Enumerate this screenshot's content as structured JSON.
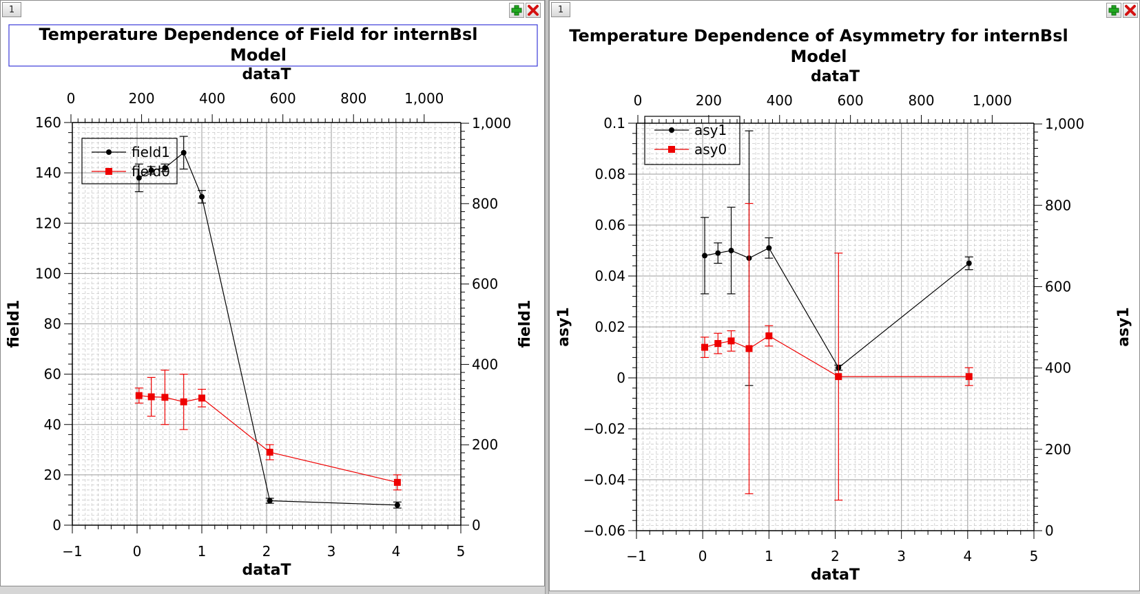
{
  "panels": [
    {
      "tab_label": "1"
    },
    {
      "tab_label": "1"
    }
  ],
  "chart_data": [
    {
      "type": "scatter",
      "title_lines": [
        "Temperature Dependence of Field for internBsl",
        "Model"
      ],
      "xlabel": "dataT",
      "ylabel": "field1",
      "x2label": "dataT",
      "y2label": "field1",
      "xlim": [
        -1,
        5
      ],
      "ylim": [
        0,
        160
      ],
      "x2lim": [
        0,
        1000
      ],
      "y2lim": [
        0,
        1000
      ],
      "xticks": [
        "−1",
        "0",
        "1",
        "2",
        "3",
        "4",
        "5"
      ],
      "yticks": [
        "0",
        "20",
        "40",
        "60",
        "80",
        "100",
        "120",
        "140",
        "160"
      ],
      "x2ticks": [
        "0",
        "200",
        "400",
        "600",
        "800",
        "1,000"
      ],
      "y2ticks": [
        "0",
        "200",
        "400",
        "600",
        "800",
        "1,000"
      ],
      "grid": true,
      "legend": "top-left",
      "series": [
        {
          "name": "field1",
          "color": "#000000",
          "marker": "circle",
          "x": [
            0.03,
            0.22,
            0.43,
            0.72,
            1.0,
            2.05,
            4.02
          ],
          "y": [
            138,
            141,
            142,
            148,
            130.5,
            9.7,
            8.0
          ],
          "err": [
            5.5,
            1.5,
            1.5,
            6.5,
            2.5,
            1.0,
            1.2
          ]
        },
        {
          "name": "field0",
          "color": "#ee0000",
          "marker": "square",
          "x": [
            0.03,
            0.22,
            0.43,
            0.72,
            1.0,
            2.05,
            4.02
          ],
          "y": [
            51.5,
            51.0,
            50.8,
            49.0,
            50.5,
            29.0,
            17.0
          ],
          "err": [
            3.0,
            7.7,
            10.8,
            11.0,
            3.5,
            3.0,
            3.0
          ]
        }
      ]
    },
    {
      "type": "scatter",
      "title_lines": [
        "Temperature Dependence of Asymmetry for internBsl",
        "Model"
      ],
      "xlabel": "dataT",
      "ylabel": "asy1",
      "x2label": "dataT",
      "y2label": "asy1",
      "xlim": [
        -1,
        5
      ],
      "ylim": [
        -0.06,
        0.1
      ],
      "x2lim": [
        0,
        1000
      ],
      "y2lim": [
        0,
        1000
      ],
      "xticks": [
        "−1",
        "0",
        "1",
        "2",
        "3",
        "4",
        "5"
      ],
      "yticks": [
        "−0.06",
        "−0.04",
        "−0.02",
        "0",
        "0.02",
        "0.04",
        "0.06",
        "0.08",
        "0.1"
      ],
      "x2ticks": [
        "0",
        "200",
        "400",
        "600",
        "800",
        "1,000"
      ],
      "y2ticks": [
        "0",
        "200",
        "400",
        "600",
        "800",
        "1,000"
      ],
      "grid": true,
      "legend": "top-left",
      "series": [
        {
          "name": "asy1",
          "color": "#000000",
          "marker": "circle",
          "x": [
            0.03,
            0.23,
            0.43,
            0.7,
            1.0,
            2.05,
            4.02
          ],
          "y": [
            0.048,
            0.049,
            0.05,
            0.047,
            0.051,
            0.004,
            0.045
          ],
          "err": [
            0.015,
            0.004,
            0.017,
            0.05,
            0.004,
            0.001,
            0.0025
          ]
        },
        {
          "name": "asy0",
          "color": "#ee0000",
          "marker": "square",
          "x": [
            0.03,
            0.23,
            0.43,
            0.7,
            1.0,
            2.05,
            4.02
          ],
          "y": [
            0.012,
            0.0135,
            0.0145,
            0.0115,
            0.0165,
            0.0005,
            0.0005
          ],
          "err": [
            0.004,
            0.004,
            0.004,
            0.057,
            0.004,
            0.0485,
            0.0035
          ]
        }
      ]
    }
  ]
}
